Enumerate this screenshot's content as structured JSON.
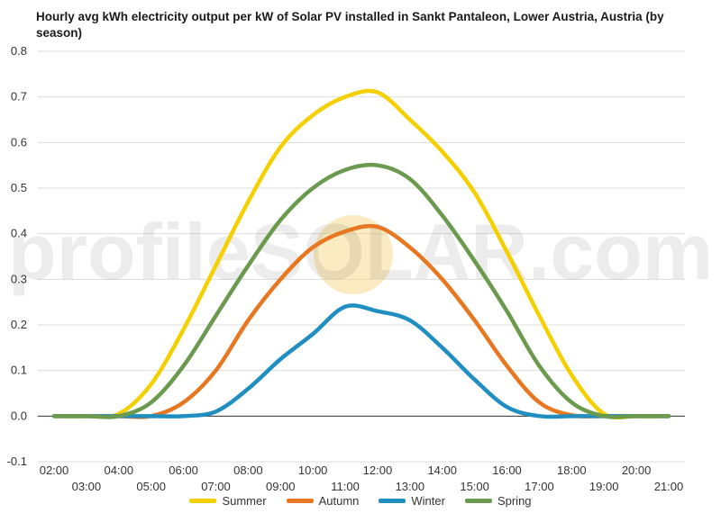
{
  "chart_data": {
    "type": "line",
    "title": "Hourly avg kWh electricity output per kW of Solar PV installed in Sankt Pantaleon, Lower Austria, Austria (by season)",
    "xlabel": "",
    "ylabel": "",
    "ylim": [
      -0.1,
      0.8
    ],
    "yticks": [
      "-0.1",
      "0.0",
      "0.1",
      "0.2",
      "0.3",
      "0.4",
      "0.5",
      "0.6",
      "0.7",
      "0.8"
    ],
    "xticks_upper": [
      "02:00",
      "04:00",
      "06:00",
      "08:00",
      "10:00",
      "12:00",
      "14:00",
      "16:00",
      "18:00",
      "20:00"
    ],
    "xticks_lower": [
      "03:00",
      "05:00",
      "07:00",
      "09:00",
      "11:00",
      "13:00",
      "15:00",
      "17:00",
      "19:00",
      "21:00"
    ],
    "x": [
      "02:00",
      "03:00",
      "04:00",
      "05:00",
      "06:00",
      "07:00",
      "08:00",
      "09:00",
      "10:00",
      "11:00",
      "12:00",
      "13:00",
      "14:00",
      "15:00",
      "16:00",
      "17:00",
      "18:00",
      "19:00",
      "20:00",
      "21:00"
    ],
    "grid": true,
    "legend_position": "bottom",
    "watermark": "profileSOLAR.com",
    "series": [
      {
        "name": "Summer",
        "color": "#f5d000",
        "values": [
          0.0,
          0.0,
          0.005,
          0.07,
          0.19,
          0.33,
          0.47,
          0.59,
          0.66,
          0.7,
          0.71,
          0.65,
          0.58,
          0.49,
          0.36,
          0.22,
          0.09,
          0.005,
          0.0,
          0.0
        ]
      },
      {
        "name": "Autumn",
        "color": "#e87722",
        "values": [
          0.0,
          0.0,
          0.0,
          0.0,
          0.03,
          0.1,
          0.21,
          0.3,
          0.37,
          0.405,
          0.415,
          0.37,
          0.3,
          0.21,
          0.11,
          0.03,
          0.002,
          0.0,
          0.0,
          0.0
        ]
      },
      {
        "name": "Winter",
        "color": "#1f8fc1",
        "values": [
          0.0,
          0.0,
          0.0,
          0.0,
          0.0,
          0.01,
          0.06,
          0.125,
          0.18,
          0.24,
          0.23,
          0.21,
          0.15,
          0.08,
          0.02,
          0.0,
          0.0,
          0.0,
          0.0,
          0.0
        ]
      },
      {
        "name": "Spring",
        "color": "#6b9a4f",
        "values": [
          0.0,
          0.0,
          0.0,
          0.03,
          0.11,
          0.22,
          0.33,
          0.43,
          0.5,
          0.54,
          0.55,
          0.52,
          0.44,
          0.34,
          0.23,
          0.11,
          0.03,
          0.0,
          0.0,
          0.0
        ]
      }
    ]
  }
}
